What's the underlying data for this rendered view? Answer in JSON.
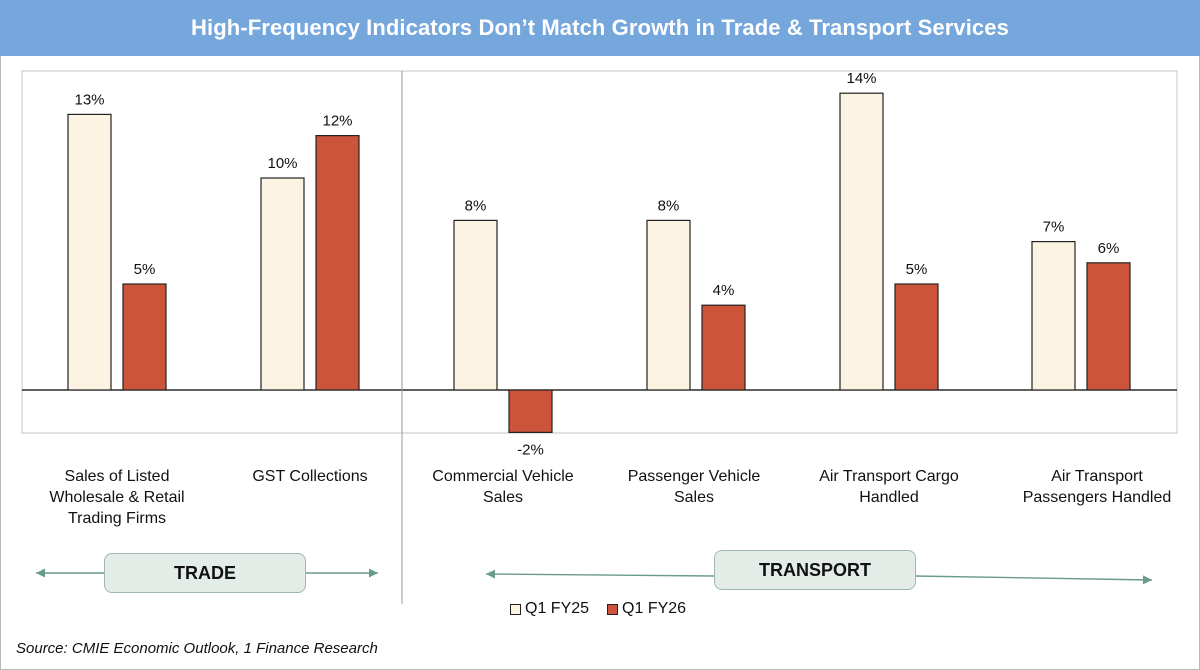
{
  "title": "High-Frequency Indicators Don’t Match Growth in Trade & Transport Services",
  "chart_data": {
    "type": "bar",
    "categories": [
      "Sales of Listed Wholesale & Retail Trading Firms",
      "GST Collections",
      "Commercial Vehicle Sales",
      "Passenger Vehicle Sales",
      "Air Transport Cargo Handled",
      "Air Transport Passengers Handled"
    ],
    "category_lines": [
      [
        "Sales of Listed",
        "Wholesale & Retail",
        "Trading Firms"
      ],
      [
        "GST Collections"
      ],
      [
        "Commercial Vehicle",
        "Sales"
      ],
      [
        "Passenger Vehicle",
        "Sales"
      ],
      [
        "Air Transport Cargo",
        "Handled"
      ],
      [
        "Air Transport",
        "Passengers Handled"
      ]
    ],
    "series": [
      {
        "name": "Q1 FY25",
        "values": [
          13,
          10,
          8,
          8,
          14,
          7
        ],
        "labels": [
          "13%",
          "10%",
          "8%",
          "8%",
          "14%",
          "7%"
        ],
        "color": "#fdf3e3",
        "stroke": "#222222"
      },
      {
        "name": "Q1 FY26",
        "values": [
          5,
          12,
          -2,
          4,
          5,
          6
        ],
        "labels": [
          "5%",
          "12%",
          "-2%",
          "4%",
          "5%",
          "6%"
        ],
        "color": "#cc543a",
        "stroke": "#222222"
      }
    ],
    "ylim": [
      -2,
      14
    ],
    "grid": false,
    "legend_position": "bottom",
    "groups": [
      {
        "label": "TRADE",
        "categories": [
          0,
          1
        ]
      },
      {
        "label": "TRANSPORT",
        "categories": [
          2,
          3,
          4,
          5
        ]
      }
    ]
  },
  "source": "Source: CMIE Economic Outlook, 1 Finance Research",
  "colors": {
    "title_bar": "#75a6dc",
    "group_box": "#e3ece7",
    "arrow": "#6a9a8c"
  }
}
